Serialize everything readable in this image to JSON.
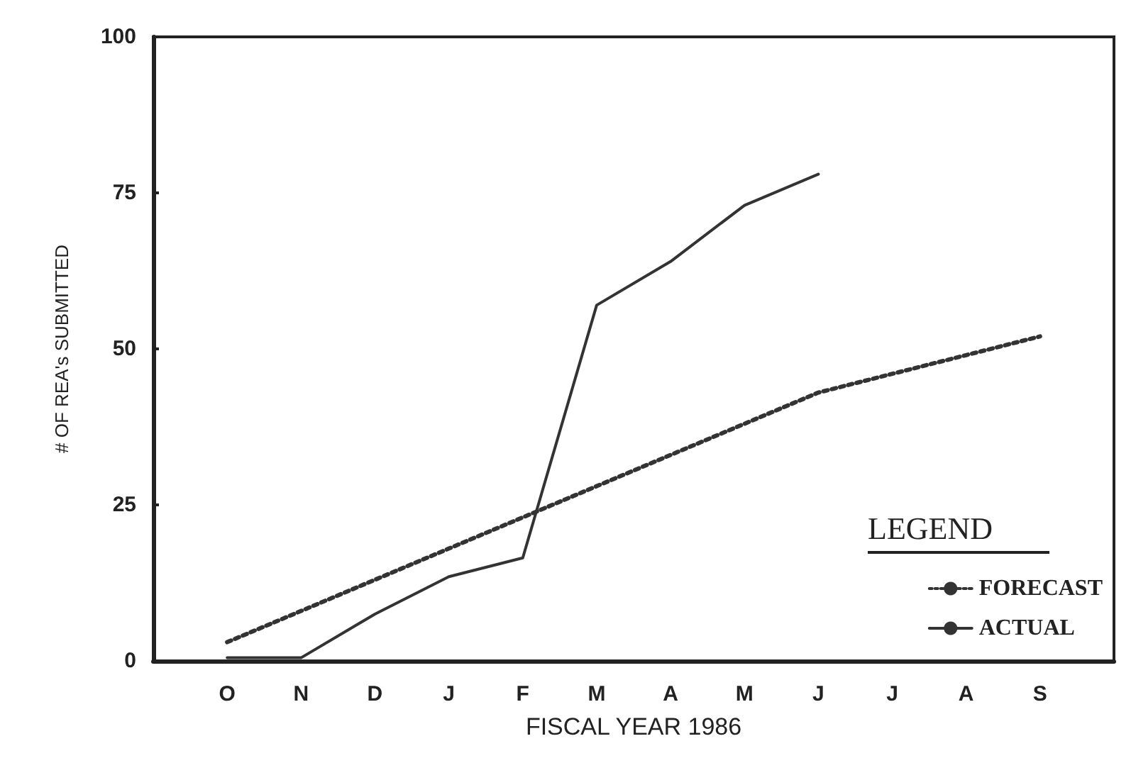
{
  "chart_data": {
    "type": "line",
    "xlabel": "FISCAL YEAR 1986",
    "ylabel": "# OF REA's SUBMITTED",
    "legend_title": "LEGEND",
    "categories": [
      null,
      "O",
      "N",
      "D",
      "J",
      "F",
      "M",
      "A",
      "M",
      "J",
      "J",
      "A",
      "S",
      null
    ],
    "series": [
      {
        "name": "FORECAST",
        "color": "#333333",
        "line_style": "dotted",
        "values": [
          null,
          3,
          8,
          13,
          18,
          23,
          28,
          33,
          38,
          43,
          46,
          49,
          52,
          null
        ]
      },
      {
        "name": "ACTUAL",
        "color": "#333333",
        "line_style": "solid",
        "values": [
          null,
          0.5,
          0.5,
          7.5,
          13.5,
          16.5,
          57,
          64,
          73,
          78,
          null,
          null,
          null,
          null
        ]
      }
    ],
    "ylim": [
      0,
      100
    ],
    "yticks": [
      0,
      25,
      50,
      75,
      100
    ],
    "grid": false,
    "legend": "bottom right",
    "marker": "none"
  }
}
